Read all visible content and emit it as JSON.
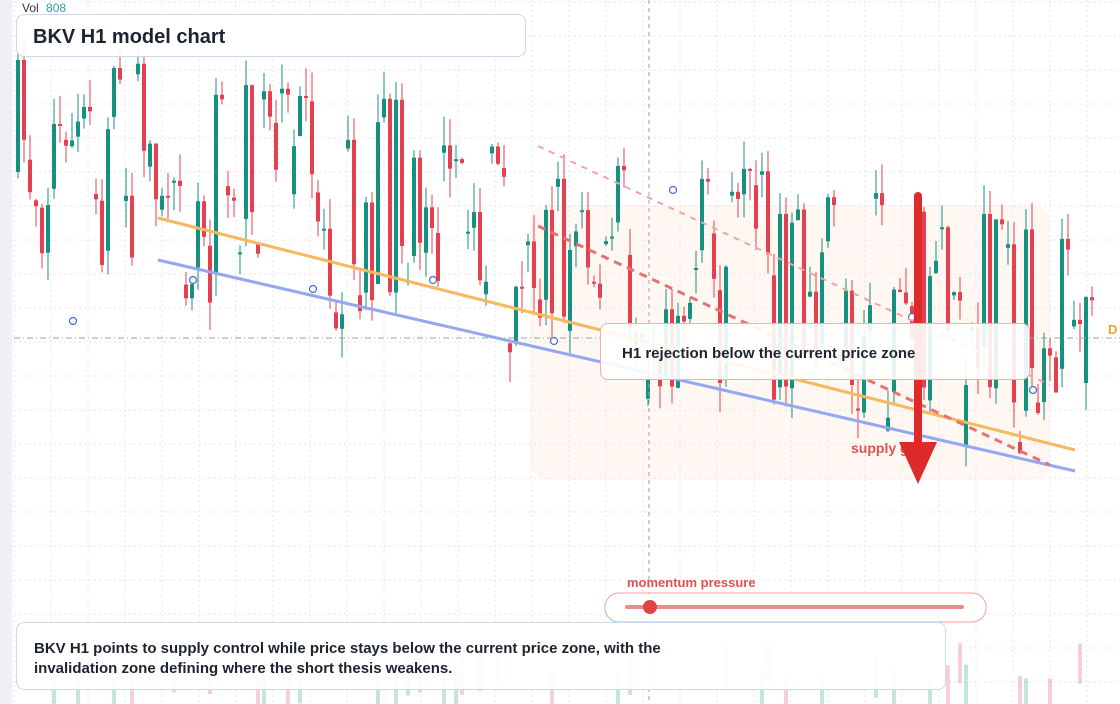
{
  "header": {
    "vol_label": "Vol",
    "vol_value": "808",
    "title": "BKV H1 model chart"
  },
  "annotations": {
    "callout": "H1 rejection below the current price zone",
    "supply": "supply gap",
    "momentum": "momentum pressure",
    "price_tag": "D",
    "summary": "BKV H1 points to supply control while price stays below the current price zone, with the invalidation zone defining where the short thesis weakens."
  }
}
